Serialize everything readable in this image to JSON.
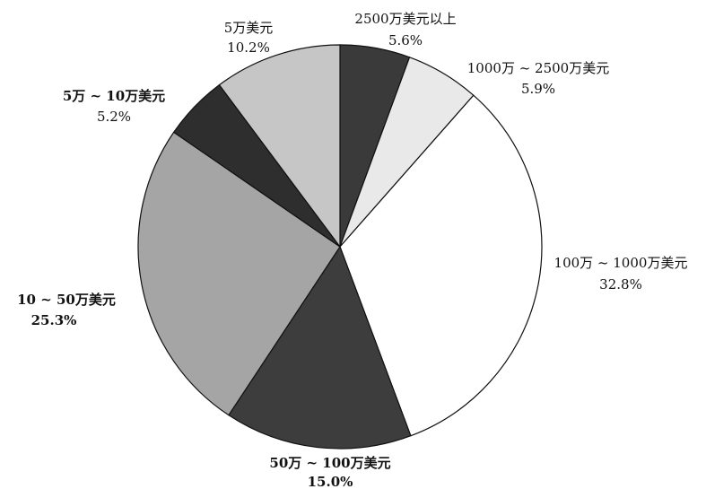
{
  "chart_data": {
    "type": "pie",
    "slices": [
      {
        "label": "2500万美元以上",
        "value": 5.6,
        "value_label": "5.6%",
        "color": "#3a3a3a"
      },
      {
        "label": "1000万 ~ 2500万美元",
        "value": 5.9,
        "value_label": "5.9%",
        "color": "#e9e9e9"
      },
      {
        "label": "100万 ~ 1000万美元",
        "value": 32.8,
        "value_label": "32.8%",
        "color": "#ffffff"
      },
      {
        "label": "50万 ~ 100万美元",
        "value": 15.0,
        "value_label": "15.0%",
        "color": "#3d3d3d"
      },
      {
        "label": "10 ~ 50万美元",
        "value": 25.3,
        "value_label": "25.3%",
        "color": "#a5a5a5"
      },
      {
        "label": "5万 ~ 10万美元",
        "value": 5.2,
        "value_label": "5.2%",
        "color": "#2e2e2e"
      },
      {
        "label": "5万美元",
        "value": 10.2,
        "value_label": "10.2%",
        "color": "#c6c6c6"
      }
    ]
  }
}
